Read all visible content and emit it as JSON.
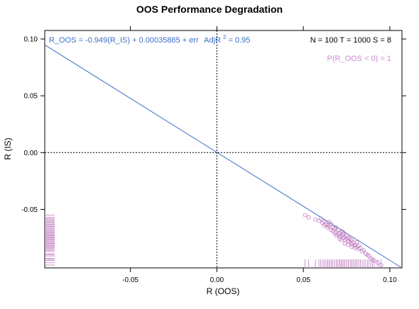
{
  "chart_data": {
    "type": "scatter",
    "title": "OOS Performance Degradation",
    "xlabel": "R (OOS)",
    "ylabel": "R (IS)",
    "xlim": [
      -0.0995,
      0.107
    ],
    "ylim": [
      -0.1015,
      0.1075
    ],
    "x_ticks": [
      -0.05,
      0.0,
      0.05,
      0.1
    ],
    "x_tick_labels": [
      "-0.05",
      "0.00",
      "0.05",
      "0.10"
    ],
    "y_ticks": [
      -0.05,
      0.0,
      0.05,
      0.1
    ],
    "y_tick_labels": [
      "-0.05",
      "0.00",
      "0.05",
      "0.10"
    ],
    "fit_text": "R_OOS = -0.949(R_IS) + 0.00035885 + err",
    "fit_r2_text": "AdjR",
    "fit_r2_sup": "2",
    "fit_r2_value": " = 0.95",
    "fit_line": {
      "x": [
        -0.0995,
        0.107
      ],
      "y": [
        0.0948,
        -0.1015
      ]
    },
    "stats_text": "N = 100  T = 1000  S = 8",
    "prob_text": "P(R_OOS < 0) = 1",
    "reference_lines": {
      "x": 0,
      "y": 0
    },
    "grid": false,
    "colors": {
      "fit_line": "#3a6fc4",
      "fit_text": "#3a6fc4",
      "points": "#c27fc2",
      "rug": "#c27fc2",
      "prob_text": "#d088d0"
    },
    "points": [
      [
        0.051,
        -0.055
      ],
      [
        0.053,
        -0.057
      ],
      [
        0.057,
        -0.059
      ],
      [
        0.059,
        -0.06
      ],
      [
        0.06,
        -0.058
      ],
      [
        0.061,
        -0.062
      ],
      [
        0.062,
        -0.061
      ],
      [
        0.063,
        -0.063
      ],
      [
        0.064,
        -0.064
      ],
      [
        0.064,
        -0.066
      ],
      [
        0.065,
        -0.065
      ],
      [
        0.066,
        -0.068
      ],
      [
        0.066,
        -0.063
      ],
      [
        0.067,
        -0.066
      ],
      [
        0.067,
        -0.069
      ],
      [
        0.068,
        -0.067
      ],
      [
        0.068,
        -0.071
      ],
      [
        0.069,
        -0.07
      ],
      [
        0.069,
        -0.066
      ],
      [
        0.07,
        -0.068
      ],
      [
        0.07,
        -0.072
      ],
      [
        0.071,
        -0.071
      ],
      [
        0.071,
        -0.074
      ],
      [
        0.072,
        -0.069
      ],
      [
        0.072,
        -0.073
      ],
      [
        0.073,
        -0.072
      ],
      [
        0.073,
        -0.075
      ],
      [
        0.073,
        -0.07
      ],
      [
        0.074,
        -0.074
      ],
      [
        0.074,
        -0.077
      ],
      [
        0.075,
        -0.073
      ],
      [
        0.075,
        -0.076
      ],
      [
        0.076,
        -0.075
      ],
      [
        0.076,
        -0.078
      ],
      [
        0.077,
        -0.076
      ],
      [
        0.077,
        -0.079
      ],
      [
        0.078,
        -0.077
      ],
      [
        0.078,
        -0.08
      ],
      [
        0.079,
        -0.079
      ],
      [
        0.079,
        -0.082
      ],
      [
        0.08,
        -0.081
      ],
      [
        0.08,
        -0.084
      ],
      [
        0.081,
        -0.083
      ],
      [
        0.082,
        -0.082
      ],
      [
        0.082,
        -0.085
      ],
      [
        0.083,
        -0.084
      ],
      [
        0.084,
        -0.087
      ],
      [
        0.085,
        -0.086
      ],
      [
        0.086,
        -0.089
      ],
      [
        0.087,
        -0.09
      ],
      [
        0.088,
        -0.091
      ],
      [
        0.089,
        -0.093
      ],
      [
        0.09,
        -0.094
      ],
      [
        0.091,
        -0.095
      ],
      [
        0.093,
        -0.097
      ],
      [
        0.095,
        -0.099
      ],
      [
        0.071,
        -0.076
      ],
      [
        0.074,
        -0.08
      ],
      [
        0.078,
        -0.083
      ],
      [
        0.065,
        -0.061
      ],
      [
        0.062,
        -0.064
      ],
      [
        0.076,
        -0.081
      ],
      [
        0.081,
        -0.079
      ],
      [
        0.069,
        -0.073
      ],
      [
        0.072,
        -0.077
      ]
    ]
  }
}
